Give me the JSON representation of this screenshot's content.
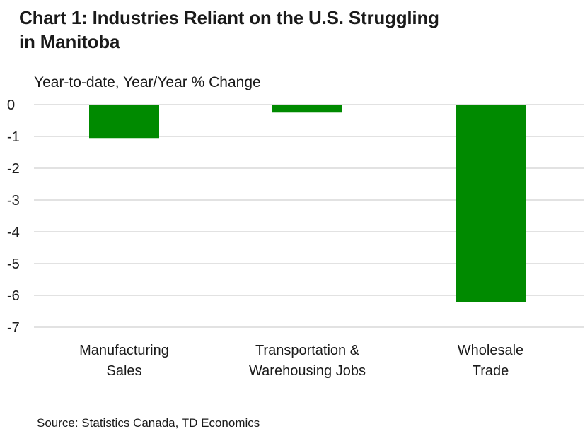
{
  "title_line1": "Chart 1: Industries Reliant on the U.S. Struggling",
  "title_line2": "in Manitoba",
  "source": "Source: Statistics Canada, TD Economics",
  "colors": {
    "bar": "#008a00",
    "grid": "#d9d9d9"
  },
  "chart_data": {
    "type": "bar",
    "title": "Chart 1: Industries Reliant on the U.S. Struggling in Manitoba",
    "ylabel": "Year-to-date, Year/Year % Change",
    "xlabel": "",
    "categories": [
      [
        "Manufacturing",
        "Sales"
      ],
      [
        "Transportation &",
        "Warehousing Jobs"
      ],
      [
        "Wholesale",
        "Trade"
      ]
    ],
    "values": [
      -1.05,
      -0.25,
      -6.2
    ],
    "ylim": [
      -7,
      0
    ],
    "yticks": [
      0,
      -1,
      -2,
      -3,
      -4,
      -5,
      -6,
      -7
    ],
    "grid": true
  }
}
